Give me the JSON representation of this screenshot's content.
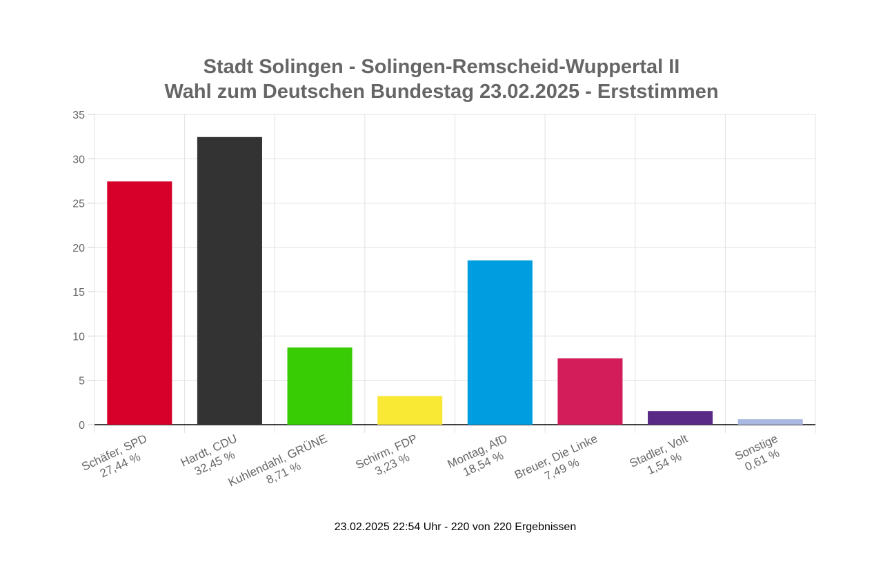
{
  "chart_data": {
    "type": "bar",
    "title": [
      "Stadt Solingen - Solingen-Remscheid-Wuppertal II",
      "Wahl zum Deutschen Bundestag 23.02.2025  - Erststimmen"
    ],
    "categories": [
      [
        "Schäfer, SPD",
        "27,44 %"
      ],
      [
        "Hardt, CDU",
        "32,45 %"
      ],
      [
        "Kuhlendahl, GRÜNE",
        "8,71 %"
      ],
      [
        "Schirm, FDP",
        "3,23 %"
      ],
      [
        "Montag, AfD",
        "18,54 %"
      ],
      [
        "Breuer, Die Linke",
        "7,49 %"
      ],
      [
        "Stadler, Volt",
        "1,54 %"
      ],
      [
        "Sonstige",
        "0,61 %"
      ]
    ],
    "values": [
      27.44,
      32.45,
      8.71,
      3.23,
      18.54,
      7.49,
      1.54,
      0.61
    ],
    "colors": [
      "#d7002a",
      "#333333",
      "#38cc05",
      "#f9e935",
      "#009ee0",
      "#d21d5a",
      "#5a2a87",
      "#a9b8e0"
    ],
    "xlabel": "",
    "ylabel": "",
    "ylim": [
      0,
      35
    ],
    "yticks": [
      0,
      5,
      10,
      15,
      20,
      25,
      30,
      35
    ],
    "grid": true,
    "legend": "none",
    "footer": "23.02.2025 22:54 Uhr - 220 von 220 Ergebnissen"
  }
}
